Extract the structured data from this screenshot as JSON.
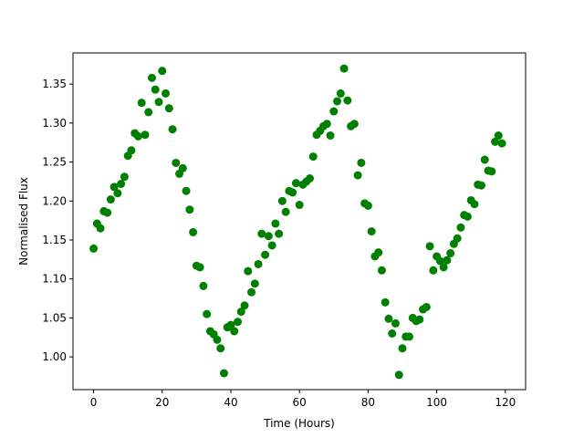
{
  "chart_data": {
    "type": "scatter",
    "title": "",
    "xlabel": "Time (Hours)",
    "ylabel": "Normalised Flux",
    "xlim": [
      -6,
      125.9
    ],
    "ylim": [
      0.958,
      1.39
    ],
    "xticks": [
      0,
      20,
      40,
      60,
      80,
      100,
      120
    ],
    "xtick_labels": [
      "0",
      "20",
      "40",
      "60",
      "80",
      "100",
      "120"
    ],
    "yticks": [
      1.0,
      1.05,
      1.1,
      1.15,
      1.2,
      1.25,
      1.3,
      1.35
    ],
    "ytick_labels": [
      "1.00",
      "1.05",
      "1.10",
      "1.15",
      "1.20",
      "1.25",
      "1.30",
      "1.35"
    ],
    "grid": false,
    "legend": false,
    "marker_color": "#008000",
    "series": [
      {
        "x": [
          0,
          1,
          2,
          3,
          4,
          5,
          6,
          7,
          8,
          9,
          10,
          11,
          12,
          13,
          14,
          15,
          16,
          17,
          18,
          19,
          20,
          21,
          22,
          23,
          24,
          25,
          26,
          27,
          28,
          29,
          30,
          31,
          32,
          33,
          34,
          35,
          36,
          37,
          38,
          39,
          40,
          41,
          42,
          43,
          44,
          45,
          46,
          47,
          48,
          49,
          50,
          51,
          52,
          53,
          54,
          55,
          56,
          57,
          58,
          59,
          60,
          61,
          62,
          63,
          64,
          65,
          66,
          67,
          68,
          69,
          70,
          71,
          72,
          73,
          74,
          75,
          76,
          77,
          78,
          79,
          80,
          81,
          82,
          83,
          84,
          85,
          86,
          87,
          88,
          89,
          90,
          91,
          92,
          93,
          94,
          95,
          96,
          97,
          98,
          99,
          100,
          101,
          102,
          103,
          104,
          105,
          106,
          107,
          108,
          109,
          110,
          111,
          112,
          113,
          114,
          115,
          116,
          117,
          118,
          119
        ],
        "y": [
          1.139,
          1.171,
          1.165,
          1.187,
          1.185,
          1.202,
          1.218,
          1.21,
          1.222,
          1.231,
          1.258,
          1.265,
          1.287,
          1.283,
          1.326,
          1.285,
          1.314,
          1.358,
          1.343,
          1.327,
          1.367,
          1.338,
          1.319,
          1.292,
          1.249,
          1.235,
          1.242,
          1.213,
          1.189,
          1.16,
          1.117,
          1.115,
          1.091,
          1.055,
          1.033,
          1.029,
          1.022,
          1.011,
          0.979,
          1.038,
          1.041,
          1.033,
          1.045,
          1.058,
          1.066,
          1.11,
          1.083,
          1.094,
          1.119,
          1.158,
          1.131,
          1.155,
          1.143,
          1.171,
          1.158,
          1.2,
          1.186,
          1.213,
          1.211,
          1.223,
          1.195,
          1.221,
          1.225,
          1.229,
          1.257,
          1.285,
          1.29,
          1.296,
          1.299,
          1.284,
          1.315,
          1.328,
          1.338,
          1.37,
          1.329,
          1.296,
          1.299,
          1.233,
          1.249,
          1.197,
          1.194,
          1.161,
          1.129,
          1.134,
          1.111,
          1.07,
          1.049,
          1.03,
          1.043,
          0.977,
          1.011,
          1.026,
          1.026,
          1.05,
          1.046,
          1.048,
          1.061,
          1.064,
          1.142,
          1.111,
          1.129,
          1.123,
          1.115,
          1.124,
          1.133,
          1.145,
          1.152,
          1.166,
          1.182,
          1.18,
          1.201,
          1.196,
          1.221,
          1.22,
          1.253,
          1.239,
          1.238,
          1.276,
          1.284,
          1.274
        ]
      }
    ]
  }
}
